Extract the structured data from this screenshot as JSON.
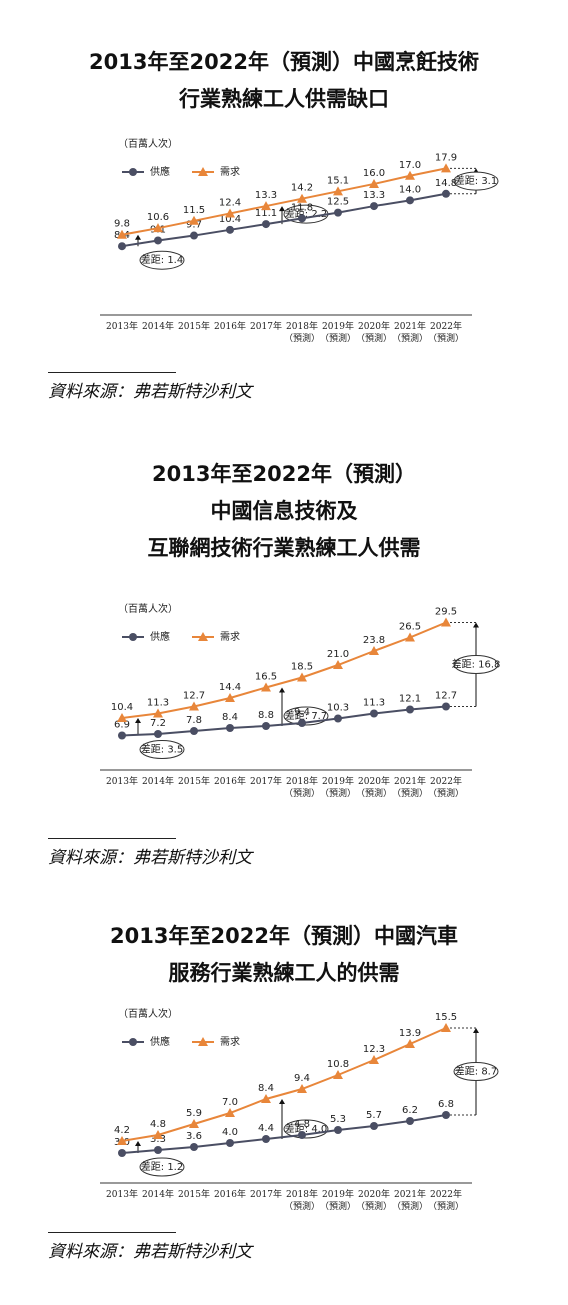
{
  "chart_data": [
    {
      "type": "line",
      "title": "2013年至2022年（預測）中國烹飪技術\n行業熟練工人供需缺口",
      "unit": "（百萬人次）",
      "categories": [
        "2013年",
        "2014年",
        "2015年",
        "2016年",
        "2017年",
        "2018年\n（預測）",
        "2019年\n（預測）",
        "2020年\n（預測）",
        "2021年\n（預測）",
        "2022年\n（預測）"
      ],
      "series": [
        {
          "name": "供應",
          "color": "#4a4e63",
          "marker": "circle",
          "values": [
            8.4,
            9.1,
            9.7,
            10.4,
            11.1,
            11.8,
            12.5,
            13.3,
            14.0,
            14.8
          ],
          "value_labels": [
            "8.4",
            "9.1",
            "9.7",
            "10.4",
            "11.1",
            "11.8",
            "12.5",
            "13.3",
            "14.0",
            "14.8"
          ]
        },
        {
          "name": "需求",
          "color": "#e8863a",
          "marker": "triangle",
          "values": [
            9.8,
            10.6,
            11.5,
            12.4,
            13.3,
            14.2,
            15.1,
            16.0,
            17.0,
            17.9
          ],
          "value_labels": [
            "9.8",
            "10.6",
            "11.5",
            "12.4",
            "13.3",
            "14.2",
            "15.1",
            "16.0",
            "17.0",
            "17.9"
          ]
        }
      ],
      "ylim": [
        0,
        21
      ],
      "annotations": [
        "差距: 1.4",
        "差距: 2.2",
        "差距: 3.1"
      ],
      "source": "資料來源：弗若斯特沙利文"
    },
    {
      "type": "line",
      "title": "2013年至2022年（預測）\n中國信息技術及\n互聯網技術行業熟練工人供需",
      "unit": "（百萬人次）",
      "categories": [
        "2013年",
        "2014年",
        "2015年",
        "2016年",
        "2017年",
        "2018年\n（預測）",
        "2019年\n（預測）",
        "2020年\n（預測）",
        "2021年\n（預測）",
        "2022年\n（預測）"
      ],
      "series": [
        {
          "name": "供應",
          "color": "#4a4e63",
          "marker": "circle",
          "values": [
            6.9,
            7.2,
            7.8,
            8.4,
            8.8,
            9.4,
            10.3,
            11.3,
            12.1,
            12.7
          ],
          "value_labels": [
            "6.9",
            "7.2",
            "7.8",
            "8.4",
            "8.8",
            "9.4",
            "10.3",
            "11.3",
            "12.1",
            "12.7"
          ]
        },
        {
          "name": "需求",
          "color": "#e8863a",
          "marker": "triangle",
          "values": [
            10.4,
            11.3,
            12.7,
            14.4,
            16.5,
            18.5,
            21.0,
            23.8,
            26.5,
            29.5
          ],
          "value_labels": [
            "10.4",
            "11.3",
            "12.7",
            "14.4",
            "16.5",
            "18.5",
            "21.0",
            "23.8",
            "26.5",
            "29.5"
          ]
        }
      ],
      "ylim": [
        0,
        33
      ],
      "annotations": [
        "差距: 3.5",
        "差距: 7.7",
        "差距: 16.8"
      ],
      "source": "資料來源：弗若斯特沙利文"
    },
    {
      "type": "line",
      "title": "2013年至2022年（預測）中國汽車\n服務行業熟練工人的供需",
      "unit": "（百萬人次）",
      "categories": [
        "2013年",
        "2014年",
        "2015年",
        "2016年",
        "2017年",
        "2018年\n（預測）",
        "2019年\n（預測）",
        "2020年\n（預測）",
        "2021年\n（預測）",
        "2022年\n（預測）"
      ],
      "series": [
        {
          "name": "供應",
          "color": "#4a4e63",
          "marker": "circle",
          "values": [
            3.0,
            3.3,
            3.6,
            4.0,
            4.4,
            4.8,
            5.3,
            5.7,
            6.2,
            6.8
          ],
          "value_labels": [
            "3.0",
            "3.3",
            "3.6",
            "4.0",
            "4.4",
            "4.8",
            "5.3",
            "5.7",
            "6.2",
            "6.8"
          ]
        },
        {
          "name": "需求",
          "color": "#e8863a",
          "marker": "triangle",
          "values": [
            4.2,
            4.8,
            5.9,
            7.0,
            8.4,
            9.4,
            10.8,
            12.3,
            13.9,
            15.5
          ],
          "value_labels": [
            "4.2",
            "4.8",
            "5.9",
            "7.0",
            "8.4",
            "9.4",
            "10.8",
            "12.3",
            "13.9",
            "15.5"
          ]
        }
      ],
      "ylim": [
        0,
        18
      ],
      "annotations": [
        "差距: 1.2",
        "差距: 4.0",
        "差距: 8.7"
      ],
      "source": "資料來源：弗若斯特沙利文"
    }
  ]
}
